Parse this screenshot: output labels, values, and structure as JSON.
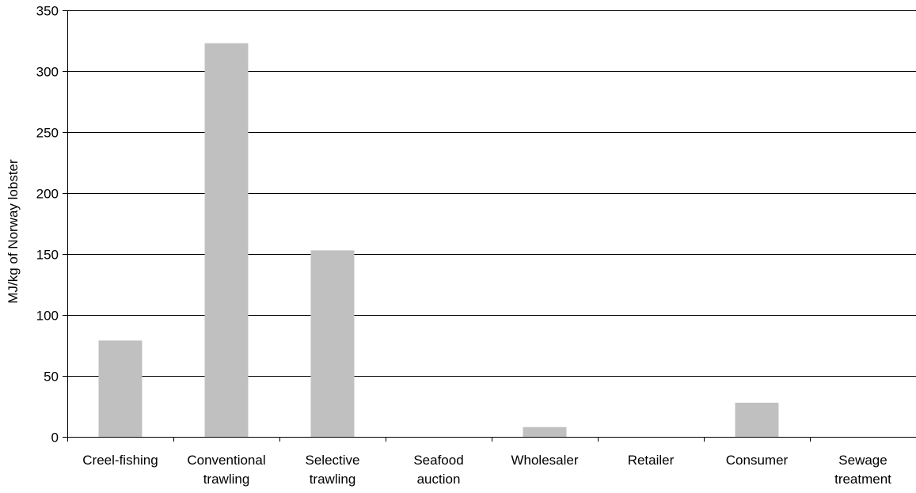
{
  "chart_data": {
    "type": "bar",
    "title": "",
    "xlabel": "",
    "ylabel": "MJ/kg of Norway lobster",
    "categories": [
      [
        "Creel-fishing"
      ],
      [
        "Conventional",
        "trawling"
      ],
      [
        "Selective",
        "trawling"
      ],
      [
        "Seafood",
        "auction"
      ],
      [
        "Wholesaler"
      ],
      [
        "Retailer"
      ],
      [
        "Consumer"
      ],
      [
        "Sewage",
        "treatment"
      ]
    ],
    "values": [
      79,
      323,
      153,
      0,
      8,
      0,
      28,
      0
    ],
    "ylim": [
      0,
      350
    ],
    "yticks": [
      0,
      50,
      100,
      150,
      200,
      250,
      300,
      350
    ],
    "grid": true,
    "legend": "none",
    "bar_color": "#c0c0c0"
  }
}
